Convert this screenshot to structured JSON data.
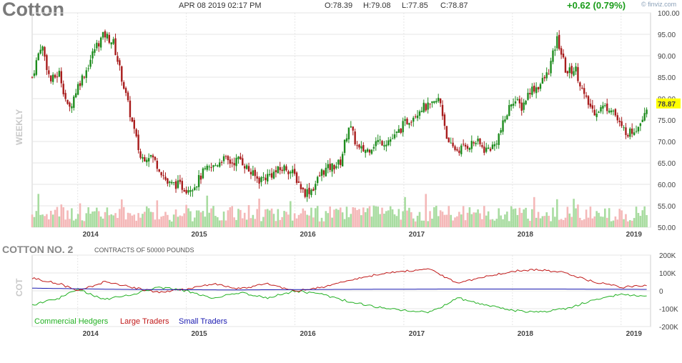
{
  "header": {
    "title": "Cotton",
    "date": "APR 08 2019 02:17 PM",
    "open": "O:78.39",
    "high": "H:79.08",
    "low": "L:77.85",
    "close": "C:78.87",
    "change": "+0.62 (0.79%)",
    "brand": "© finviz.com"
  },
  "price_panel": {
    "side_label": "WEEKLY",
    "last_price": "78.87"
  },
  "cot_panel": {
    "title": "COTTON NO. 2",
    "subtitle": "CONTRACTS OF 50000 POUNDS",
    "side_label": "COT",
    "legend": [
      "Commercial Hedgers",
      "Large Traders",
      "Small Traders"
    ]
  },
  "colors": {
    "up": "#1e8c1e",
    "down": "#a81c1c",
    "vol_up": "#a8dca0",
    "vol_down": "#f4b8b8",
    "commercial": "#22b022",
    "large": "#c01818",
    "small": "#1818b0",
    "last_price_bg": "#ffff00"
  },
  "chart_data": [
    {
      "type": "candlestick",
      "series_interval": "weekly",
      "x_ticks": [
        "2014",
        "2015",
        "2016",
        "2017",
        "2018",
        "2019"
      ],
      "y_ticks": [
        "100.00",
        "95.00",
        "90.00",
        "85.00",
        "80.00",
        "75.00",
        "70.00",
        "65.00",
        "60.00",
        "55.00",
        "50.00"
      ],
      "ylim": [
        50,
        100
      ],
      "anchors": [
        {
          "x": "2013-08",
          "y": 85
        },
        {
          "x": "2013-09",
          "y": 93
        },
        {
          "x": "2013-10",
          "y": 84
        },
        {
          "x": "2013-11",
          "y": 86
        },
        {
          "x": "2013-12",
          "y": 77
        },
        {
          "x": "2014-01",
          "y": 83
        },
        {
          "x": "2014-02",
          "y": 87
        },
        {
          "x": "2014-03",
          "y": 92
        },
        {
          "x": "2014-04",
          "y": 95
        },
        {
          "x": "2014-05",
          "y": 93
        },
        {
          "x": "2014-06",
          "y": 84
        },
        {
          "x": "2014-07",
          "y": 75
        },
        {
          "x": "2014-08",
          "y": 66
        },
        {
          "x": "2014-09",
          "y": 67
        },
        {
          "x": "2014-10",
          "y": 64
        },
        {
          "x": "2014-11",
          "y": 60
        },
        {
          "x": "2014-12",
          "y": 60
        },
        {
          "x": "2015-01",
          "y": 59
        },
        {
          "x": "2015-02",
          "y": 60
        },
        {
          "x": "2015-03",
          "y": 63
        },
        {
          "x": "2015-04",
          "y": 64
        },
        {
          "x": "2015-05",
          "y": 66
        },
        {
          "x": "2015-06",
          "y": 65
        },
        {
          "x": "2015-07",
          "y": 66
        },
        {
          "x": "2015-08",
          "y": 63
        },
        {
          "x": "2015-09",
          "y": 61
        },
        {
          "x": "2015-10",
          "y": 62
        },
        {
          "x": "2015-11",
          "y": 63
        },
        {
          "x": "2015-12",
          "y": 64
        },
        {
          "x": "2016-01",
          "y": 62
        },
        {
          "x": "2016-02",
          "y": 58
        },
        {
          "x": "2016-03",
          "y": 59
        },
        {
          "x": "2016-04",
          "y": 63
        },
        {
          "x": "2016-05",
          "y": 64
        },
        {
          "x": "2016-06",
          "y": 65
        },
        {
          "x": "2016-07",
          "y": 74
        },
        {
          "x": "2016-08",
          "y": 68
        },
        {
          "x": "2016-09",
          "y": 68
        },
        {
          "x": "2016-10",
          "y": 70
        },
        {
          "x": "2016-11",
          "y": 70
        },
        {
          "x": "2016-12",
          "y": 71
        },
        {
          "x": "2017-01",
          "y": 74
        },
        {
          "x": "2017-02",
          "y": 76
        },
        {
          "x": "2017-03",
          "y": 78
        },
        {
          "x": "2017-04",
          "y": 78
        },
        {
          "x": "2017-05",
          "y": 80
        },
        {
          "x": "2017-06",
          "y": 69
        },
        {
          "x": "2017-07",
          "y": 68
        },
        {
          "x": "2017-08",
          "y": 69
        },
        {
          "x": "2017-09",
          "y": 70
        },
        {
          "x": "2017-10",
          "y": 68
        },
        {
          "x": "2017-11",
          "y": 69
        },
        {
          "x": "2017-12",
          "y": 74
        },
        {
          "x": "2018-01",
          "y": 80
        },
        {
          "x": "2018-02",
          "y": 78
        },
        {
          "x": "2018-03",
          "y": 82
        },
        {
          "x": "2018-04",
          "y": 83
        },
        {
          "x": "2018-05",
          "y": 86
        },
        {
          "x": "2018-06",
          "y": 94
        },
        {
          "x": "2018-07",
          "y": 86
        },
        {
          "x": "2018-08",
          "y": 87
        },
        {
          "x": "2018-09",
          "y": 80
        },
        {
          "x": "2018-10",
          "y": 77
        },
        {
          "x": "2018-11",
          "y": 78
        },
        {
          "x": "2018-12",
          "y": 78
        },
        {
          "x": "2019-01",
          "y": 73
        },
        {
          "x": "2019-02",
          "y": 72
        },
        {
          "x": "2019-03",
          "y": 74
        },
        {
          "x": "2019-04",
          "y": 78.87
        }
      ]
    },
    {
      "type": "line",
      "x_ticks": [
        "2014",
        "2015",
        "2016",
        "2017",
        "2018",
        "2019"
      ],
      "y_ticks": [
        "200K",
        "100K",
        "0",
        "-100K",
        "-200K"
      ],
      "ylim": [
        -200000,
        200000
      ],
      "series": [
        {
          "name": "Commercial Hedgers",
          "points": [
            {
              "x": "2013-08",
              "y": -80000
            },
            {
              "x": "2013-11",
              "y": -40000
            },
            {
              "x": "2014-01",
              "y": 10000
            },
            {
              "x": "2014-04",
              "y": -50000
            },
            {
              "x": "2014-07",
              "y": -20000
            },
            {
              "x": "2014-10",
              "y": 20000
            },
            {
              "x": "2015-01",
              "y": 0
            },
            {
              "x": "2015-04",
              "y": -40000
            },
            {
              "x": "2015-07",
              "y": -10000
            },
            {
              "x": "2015-10",
              "y": -40000
            },
            {
              "x": "2016-01",
              "y": 0
            },
            {
              "x": "2016-04",
              "y": -20000
            },
            {
              "x": "2016-07",
              "y": -60000
            },
            {
              "x": "2016-10",
              "y": -90000
            },
            {
              "x": "2017-01",
              "y": -110000
            },
            {
              "x": "2017-04",
              "y": -120000
            },
            {
              "x": "2017-07",
              "y": -40000
            },
            {
              "x": "2017-10",
              "y": -80000
            },
            {
              "x": "2018-01",
              "y": -110000
            },
            {
              "x": "2018-04",
              "y": -120000
            },
            {
              "x": "2018-07",
              "y": -100000
            },
            {
              "x": "2018-10",
              "y": -50000
            },
            {
              "x": "2019-01",
              "y": -20000
            },
            {
              "x": "2019-04",
              "y": -30000
            }
          ]
        },
        {
          "name": "Large Traders",
          "points": [
            {
              "x": "2013-08",
              "y": 70000
            },
            {
              "x": "2013-11",
              "y": 40000
            },
            {
              "x": "2014-01",
              "y": 0
            },
            {
              "x": "2014-04",
              "y": 50000
            },
            {
              "x": "2014-07",
              "y": 20000
            },
            {
              "x": "2014-10",
              "y": -10000
            },
            {
              "x": "2015-01",
              "y": 10000
            },
            {
              "x": "2015-04",
              "y": 40000
            },
            {
              "x": "2015-07",
              "y": 10000
            },
            {
              "x": "2015-10",
              "y": 40000
            },
            {
              "x": "2016-01",
              "y": 0
            },
            {
              "x": "2016-04",
              "y": 20000
            },
            {
              "x": "2016-07",
              "y": 60000
            },
            {
              "x": "2016-10",
              "y": 90000
            },
            {
              "x": "2017-01",
              "y": 110000
            },
            {
              "x": "2017-04",
              "y": 120000
            },
            {
              "x": "2017-07",
              "y": 40000
            },
            {
              "x": "2017-10",
              "y": 80000
            },
            {
              "x": "2018-01",
              "y": 110000
            },
            {
              "x": "2018-04",
              "y": 120000
            },
            {
              "x": "2018-07",
              "y": 100000
            },
            {
              "x": "2018-10",
              "y": 50000
            },
            {
              "x": "2019-01",
              "y": 20000
            },
            {
              "x": "2019-04",
              "y": 30000
            }
          ]
        },
        {
          "name": "Small Traders",
          "points": [
            {
              "x": "2013-08",
              "y": 15000
            },
            {
              "x": "2014-06",
              "y": 8000
            },
            {
              "x": "2015-06",
              "y": 5000
            },
            {
              "x": "2016-06",
              "y": 8000
            },
            {
              "x": "2017-06",
              "y": 10000
            },
            {
              "x": "2018-06",
              "y": 10000
            },
            {
              "x": "2019-04",
              "y": 8000
            }
          ]
        }
      ]
    }
  ]
}
